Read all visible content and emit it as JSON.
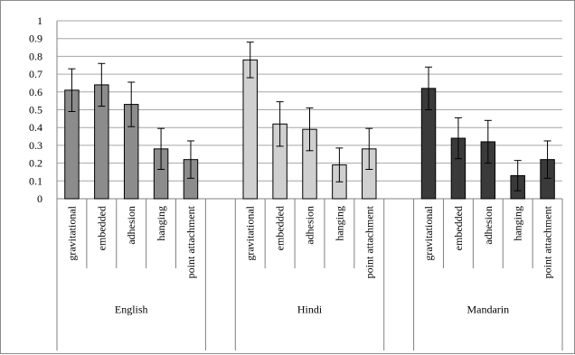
{
  "chart_data": {
    "type": "bar",
    "title": "",
    "xlabel": "",
    "ylabel": "",
    "ylim": [
      0,
      1
    ],
    "yticks": [
      "0",
      "0.1",
      "0.2",
      "0.3",
      "0.4",
      "0.5",
      "0.6",
      "0.7",
      "0.8",
      "0.9",
      "1"
    ],
    "grid": true,
    "legend": "none",
    "groups": [
      {
        "name": "English",
        "color": "#8c8c8c",
        "categories": [
          "gravitational",
          "embedded",
          "adhesion",
          "hanging",
          "point attachment"
        ],
        "values": [
          0.61,
          0.64,
          0.53,
          0.28,
          0.22
        ],
        "errors": [
          0.12,
          0.12,
          0.125,
          0.115,
          0.105
        ]
      },
      {
        "name": "Hindi",
        "color": "#d0d0d0",
        "categories": [
          "gravitational",
          "embedded",
          "adhesion",
          "hanging",
          "point attachment"
        ],
        "values": [
          0.78,
          0.42,
          0.39,
          0.19,
          0.28
        ],
        "errors": [
          0.1,
          0.125,
          0.12,
          0.095,
          0.115
        ]
      },
      {
        "name": "Mandarin",
        "color": "#3a3a3a",
        "categories": [
          "gravitational",
          "embedded",
          "adhesion",
          "hanging",
          "point attachment"
        ],
        "values": [
          0.62,
          0.34,
          0.32,
          0.13,
          0.22
        ],
        "errors": [
          0.12,
          0.115,
          0.12,
          0.085,
          0.105
        ]
      }
    ]
  }
}
